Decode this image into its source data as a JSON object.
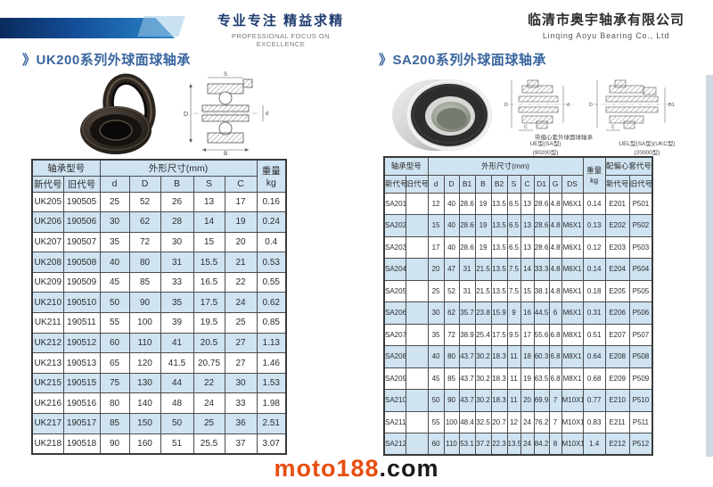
{
  "header": {
    "slogan_cn": "专业专注 精益求精",
    "slogan_en": "PROFESSIONAL FOCUS ON EXCELLENCE",
    "company_cn": "临清市奥宇轴承有限公司",
    "company_en": "Linqing Aoyu Bearing Co., Ltd"
  },
  "colors": {
    "band_dark": "#0a2b5e",
    "band_light": "#2b86c8",
    "title_blue": "#39659e",
    "table_row_blue": "#cfe3f1",
    "footer_orange": "#e84e0f",
    "footer_black": "#1a1a1a"
  },
  "drawings": {
    "labels": {
      "d": "d",
      "D": "D",
      "B": "B",
      "S": "S",
      "C": "C",
      "B1": "B1",
      "G": "G"
    },
    "center_label": "带偏心套外球面球轴承",
    "left_caption_1": "UE型(SA型)",
    "left_caption_2": "(90200型)",
    "right_caption_1": "UEL型(SA型)(UKC型)",
    "right_caption_2": "(20000型)"
  },
  "left_section": {
    "title": "》UK200系列外球面球轴承",
    "table": {
      "group": {
        "model": "轴承型号",
        "dims": "外形尺寸(mm)",
        "weight_l1": "重量",
        "weight_l2": "kg"
      },
      "columns": [
        "新代号",
        "旧代号",
        "d",
        "D",
        "B",
        "S",
        "C"
      ],
      "rows": [
        [
          "UK205",
          "190505",
          "25",
          "52",
          "26",
          "13",
          "17",
          "0.16"
        ],
        [
          "UK206",
          "190506",
          "30",
          "62",
          "28",
          "14",
          "19",
          "0.24"
        ],
        [
          "UK207",
          "190507",
          "35",
          "72",
          "30",
          "15",
          "20",
          "0.4"
        ],
        [
          "UK208",
          "190508",
          "40",
          "80",
          "31",
          "15.5",
          "21",
          "0.53"
        ],
        [
          "UK209",
          "190509",
          "45",
          "85",
          "33",
          "16.5",
          "22",
          "0.55"
        ],
        [
          "UK210",
          "190510",
          "50",
          "90",
          "35",
          "17.5",
          "24",
          "0.62"
        ],
        [
          "UK211",
          "190511",
          "55",
          "100",
          "39",
          "19.5",
          "25",
          "0.85"
        ],
        [
          "UK212",
          "190512",
          "60",
          "110",
          "41",
          "20.5",
          "27",
          "1.13"
        ],
        [
          "UK213",
          "190513",
          "65",
          "120",
          "41.5",
          "20.75",
          "27",
          "1.46"
        ],
        [
          "UK215",
          "190515",
          "75",
          "130",
          "44",
          "22",
          "30",
          "1.53"
        ],
        [
          "UK216",
          "190516",
          "80",
          "140",
          "48",
          "24",
          "33",
          "1.98"
        ],
        [
          "UK217",
          "190517",
          "85",
          "150",
          "50",
          "25",
          "36",
          "2.51"
        ],
        [
          "UK218",
          "190518",
          "90",
          "160",
          "51",
          "25.5",
          "37",
          "3.07"
        ]
      ]
    }
  },
  "right_section": {
    "title": "》SA200系列外球面球轴承",
    "table": {
      "group": {
        "model": "轴承型号",
        "dims": "外形尺寸(mm)",
        "weight_l1": "重量",
        "weight_l2": "kg",
        "eccentric": "配偏心套代号"
      },
      "columns": [
        "新代号",
        "旧代号",
        "d",
        "D",
        "B1",
        "B",
        "B2",
        "S",
        "C",
        "D1",
        "G",
        "DS"
      ],
      "ecc_columns": [
        "新代号",
        "旧代号"
      ],
      "rows": [
        [
          "SA201",
          "",
          "12",
          "40",
          "28.6",
          "19",
          "13.5",
          "6.5",
          "13",
          "28.6",
          "4.8",
          "M6X1",
          "0.14",
          "E201",
          "P501"
        ],
        [
          "SA202",
          "",
          "15",
          "40",
          "28.6",
          "19",
          "13.5",
          "6.5",
          "13",
          "28.6",
          "4.8",
          "M6X1",
          "0.13",
          "E202",
          "P502"
        ],
        [
          "SA203",
          "",
          "17",
          "40",
          "28.6",
          "19",
          "13.5",
          "6.5",
          "13",
          "28.6",
          "4.8",
          "M6X1",
          "0.12",
          "E203",
          "P503"
        ],
        [
          "SA204",
          "",
          "20",
          "47",
          "31",
          "21.5",
          "13.5",
          "7.5",
          "14",
          "33.3",
          "4.8",
          "M6X1",
          "0.14",
          "E204",
          "P504"
        ],
        [
          "SA205",
          "",
          "25",
          "52",
          "31",
          "21.5",
          "13.5",
          "7.5",
          "15",
          "38.1",
          "4.8",
          "M6X1",
          "0.18",
          "E205",
          "P505"
        ],
        [
          "SA206",
          "",
          "30",
          "62",
          "35.7",
          "23.8",
          "15.9",
          "9",
          "16",
          "44.5",
          "6",
          "M6X1",
          "0.31",
          "E206",
          "P506"
        ],
        [
          "SA207",
          "",
          "35",
          "72",
          "38.9",
          "25.4",
          "17.5",
          "9.5",
          "17",
          "55.6",
          "6.8",
          "M8X1",
          "0.51",
          "E207",
          "P507"
        ],
        [
          "SA208",
          "",
          "40",
          "80",
          "43.7",
          "30.2",
          "18.3",
          "11",
          "18",
          "60.3",
          "6.8",
          "M8X1",
          "0.64",
          "E208",
          "P508"
        ],
        [
          "SA209",
          "",
          "45",
          "85",
          "43.7",
          "30.2",
          "18.3",
          "11",
          "19",
          "63.5",
          "6.8",
          "M8X1",
          "0.68",
          "E209",
          "P509"
        ],
        [
          "SA210",
          "",
          "50",
          "90",
          "43.7",
          "30.2",
          "18.3",
          "11",
          "20",
          "69.9",
          "7",
          "M10X1",
          "0.77",
          "E210",
          "P510"
        ],
        [
          "SA211",
          "",
          "55",
          "100",
          "48.4",
          "32.5",
          "20.7",
          "12",
          "24",
          "76.2",
          "7",
          "M10X1",
          "0.83",
          "E211",
          "P511"
        ],
        [
          "SA212",
          "",
          "60",
          "110",
          "53.1",
          "37.2",
          "22.3",
          "13.5",
          "24",
          "84.2",
          "8",
          "M10X1",
          "1.4",
          "E212",
          "P512"
        ]
      ]
    }
  },
  "footer": {
    "brand": "moto188",
    "suffix": ".com"
  }
}
